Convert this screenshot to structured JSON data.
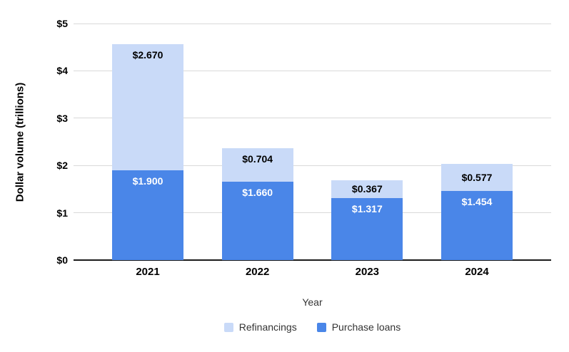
{
  "chart_data": {
    "type": "bar",
    "stacked": true,
    "xlabel": "Year",
    "ylabel": "Dollar volume (trillions)",
    "categories": [
      "2021",
      "2022",
      "2023",
      "2024"
    ],
    "series": [
      {
        "name": "Purchase loans",
        "color": "#4a86e8",
        "label_color": "#ffffff",
        "values": [
          1.9,
          1.66,
          1.317,
          1.454
        ],
        "labels": [
          "$1.900",
          "$1.660",
          "$1.317",
          "$1.454"
        ]
      },
      {
        "name": "Refinancings",
        "color": "#c9daf8",
        "label_color": "#000000",
        "values": [
          2.67,
          0.704,
          0.367,
          0.577
        ],
        "labels": [
          "$2.670",
          "$0.704",
          "$0.367",
          "$0.577"
        ]
      }
    ],
    "ylim": [
      0,
      5
    ],
    "yticks": [
      "$0",
      "$1",
      "$2",
      "$3",
      "$4",
      "$5"
    ],
    "grid": true,
    "legend_position": "bottom"
  },
  "legend": {
    "items": [
      {
        "label": "Refinancings",
        "color": "#c9daf8"
      },
      {
        "label": "Purchase loans",
        "color": "#4a86e8"
      }
    ]
  },
  "colors": {
    "refinancings": "#c9daf8",
    "purchase_loans": "#4a86e8",
    "gridline": "#d9d9d9",
    "axis_line": "#1a1a1a",
    "background": "#ffffff"
  }
}
